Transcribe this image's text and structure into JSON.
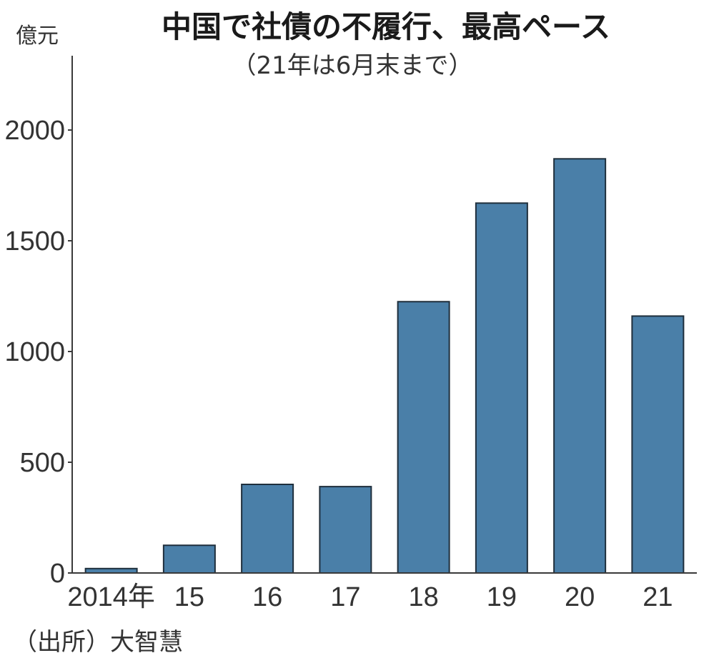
{
  "chart_data": {
    "type": "bar",
    "title": "中国で社債の不履行、最高ペース",
    "subtitle": "（21年は6月末まで）",
    "ylabel": "億元",
    "xlabel": "",
    "categories": [
      "2014年",
      "15",
      "16",
      "17",
      "18",
      "19",
      "20",
      "21"
    ],
    "values": [
      20,
      125,
      400,
      390,
      1225,
      1670,
      1870,
      1160
    ],
    "ylim": [
      0,
      2250
    ],
    "yticks": [
      0,
      500,
      1000,
      1500,
      2000
    ],
    "grid": false,
    "legend": "none",
    "bar_color": "#4a7fa8",
    "source": "（出所）大智慧"
  }
}
